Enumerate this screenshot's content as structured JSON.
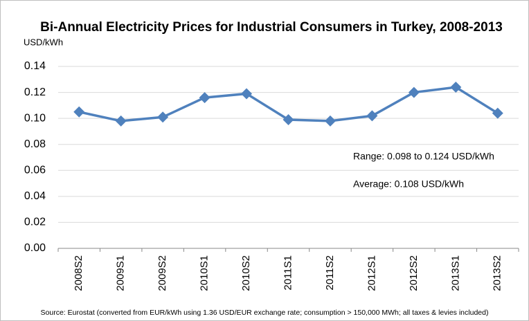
{
  "chart_data": {
    "type": "line",
    "title": "Bi-Annual Electricity Prices for Industrial Consumers in Turkey, 2008-2013",
    "y_label": "USD/kWh",
    "categories": [
      "2008S2",
      "2009S1",
      "2009S2",
      "2010S1",
      "2010S2",
      "2011S1",
      "2011S2",
      "2012S1",
      "2012S2",
      "2013S1",
      "2013S2"
    ],
    "series": [
      {
        "name": "Electricity price",
        "color": "#4f81bd",
        "values": [
          0.105,
          0.098,
          0.101,
          0.116,
          0.119,
          0.099,
          0.098,
          0.102,
          0.12,
          0.124,
          0.104
        ]
      }
    ],
    "ylim": [
      0,
      0.14
    ],
    "yticks": [
      {
        "value": 0,
        "label": "0.00"
      },
      0.02,
      0.04,
      0.06,
      0.08,
      {
        "value": 0.1,
        "label": "0.10"
      },
      0.12,
      0.14
    ],
    "grid": true,
    "annotations": [
      "Range:  0.098 to 0.124  USD/kWh",
      "Average:  0.108  USD/kWh"
    ],
    "source": "Source: Eurostat (converted from EUR/kWh using 1.36 USD/EUR exchange rate; consumption > 150,000 MWh; all taxes & levies included)"
  }
}
